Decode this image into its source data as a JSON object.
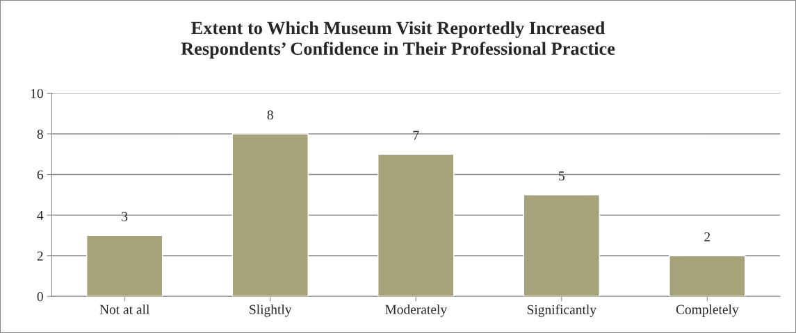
{
  "chart_data": {
    "type": "bar",
    "title": "Extent to Which Museum Visit Reportedly Increased\nRespondents’ Confidence in Their Professional Practice",
    "categories": [
      "Not at all",
      "Slightly",
      "Moderately",
      "Significantly",
      "Completely"
    ],
    "values": [
      3,
      8,
      7,
      5,
      2
    ],
    "color": "#a6a27a",
    "ylim": [
      0,
      10
    ],
    "yticks": [
      0,
      2,
      4,
      6,
      8,
      10
    ],
    "grid": "y",
    "data_labels": true
  }
}
